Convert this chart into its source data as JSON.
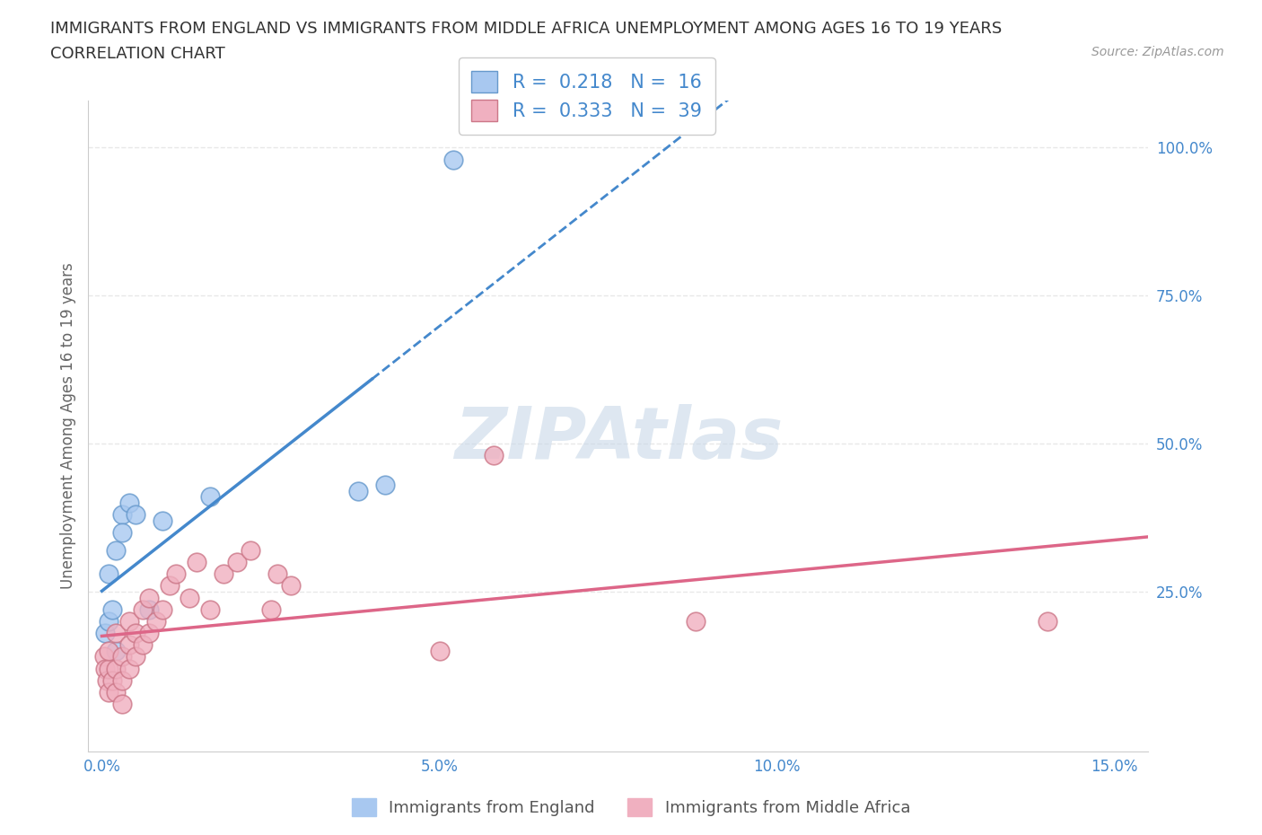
{
  "title_line1": "IMMIGRANTS FROM ENGLAND VS IMMIGRANTS FROM MIDDLE AFRICA UNEMPLOYMENT AMONG AGES 16 TO 19 YEARS",
  "title_line2": "CORRELATION CHART",
  "source_text": "Source: ZipAtlas.com",
  "ylabel": "Unemployment Among Ages 16 to 19 years",
  "xlim": [
    -0.002,
    0.155
  ],
  "ylim": [
    -0.02,
    1.08
  ],
  "xtick_labels": [
    "0.0%",
    "5.0%",
    "10.0%",
    "15.0%"
  ],
  "xtick_values": [
    0.0,
    0.05,
    0.1,
    0.15
  ],
  "ytick_labels": [
    "25.0%",
    "50.0%",
    "75.0%",
    "100.0%"
  ],
  "ytick_values": [
    0.25,
    0.5,
    0.75,
    1.0
  ],
  "england_color": "#a8c8f0",
  "england_edge_color": "#6699cc",
  "middle_africa_color": "#f0b0c0",
  "middle_africa_edge_color": "#cc7788",
  "england_line_color": "#4488cc",
  "middle_africa_line_color": "#dd6688",
  "england_R": 0.218,
  "england_N": 16,
  "middle_africa_R": 0.333,
  "middle_africa_N": 39,
  "england_scatter_x": [
    0.0005,
    0.001,
    0.001,
    0.0015,
    0.002,
    0.002,
    0.003,
    0.003,
    0.004,
    0.005,
    0.007,
    0.009,
    0.016,
    0.038,
    0.042,
    0.052
  ],
  "england_scatter_y": [
    0.18,
    0.2,
    0.28,
    0.22,
    0.15,
    0.32,
    0.38,
    0.35,
    0.4,
    0.38,
    0.22,
    0.37,
    0.41,
    0.42,
    0.43,
    0.98
  ],
  "middle_africa_scatter_x": [
    0.0003,
    0.0005,
    0.0008,
    0.001,
    0.001,
    0.001,
    0.0015,
    0.002,
    0.002,
    0.002,
    0.003,
    0.003,
    0.003,
    0.004,
    0.004,
    0.004,
    0.005,
    0.005,
    0.006,
    0.006,
    0.007,
    0.007,
    0.008,
    0.009,
    0.01,
    0.011,
    0.013,
    0.014,
    0.016,
    0.018,
    0.02,
    0.022,
    0.025,
    0.026,
    0.028,
    0.05,
    0.058,
    0.088,
    0.14
  ],
  "middle_africa_scatter_y": [
    0.14,
    0.12,
    0.1,
    0.08,
    0.12,
    0.15,
    0.1,
    0.08,
    0.12,
    0.18,
    0.06,
    0.1,
    0.14,
    0.12,
    0.16,
    0.2,
    0.14,
    0.18,
    0.16,
    0.22,
    0.18,
    0.24,
    0.2,
    0.22,
    0.26,
    0.28,
    0.24,
    0.3,
    0.22,
    0.28,
    0.3,
    0.32,
    0.22,
    0.28,
    0.26,
    0.15,
    0.48,
    0.2,
    0.2
  ],
  "watermark_text": "ZIPAtlas",
  "watermark_color": "#c8d8e8",
  "background_color": "#ffffff",
  "grid_color": "#e8e8e8",
  "grid_style": "--",
  "title_color": "#333333",
  "axis_label_color": "#666666",
  "tick_color": "#4488cc",
  "legend_text_color": "#4488cc",
  "source_color": "#999999"
}
